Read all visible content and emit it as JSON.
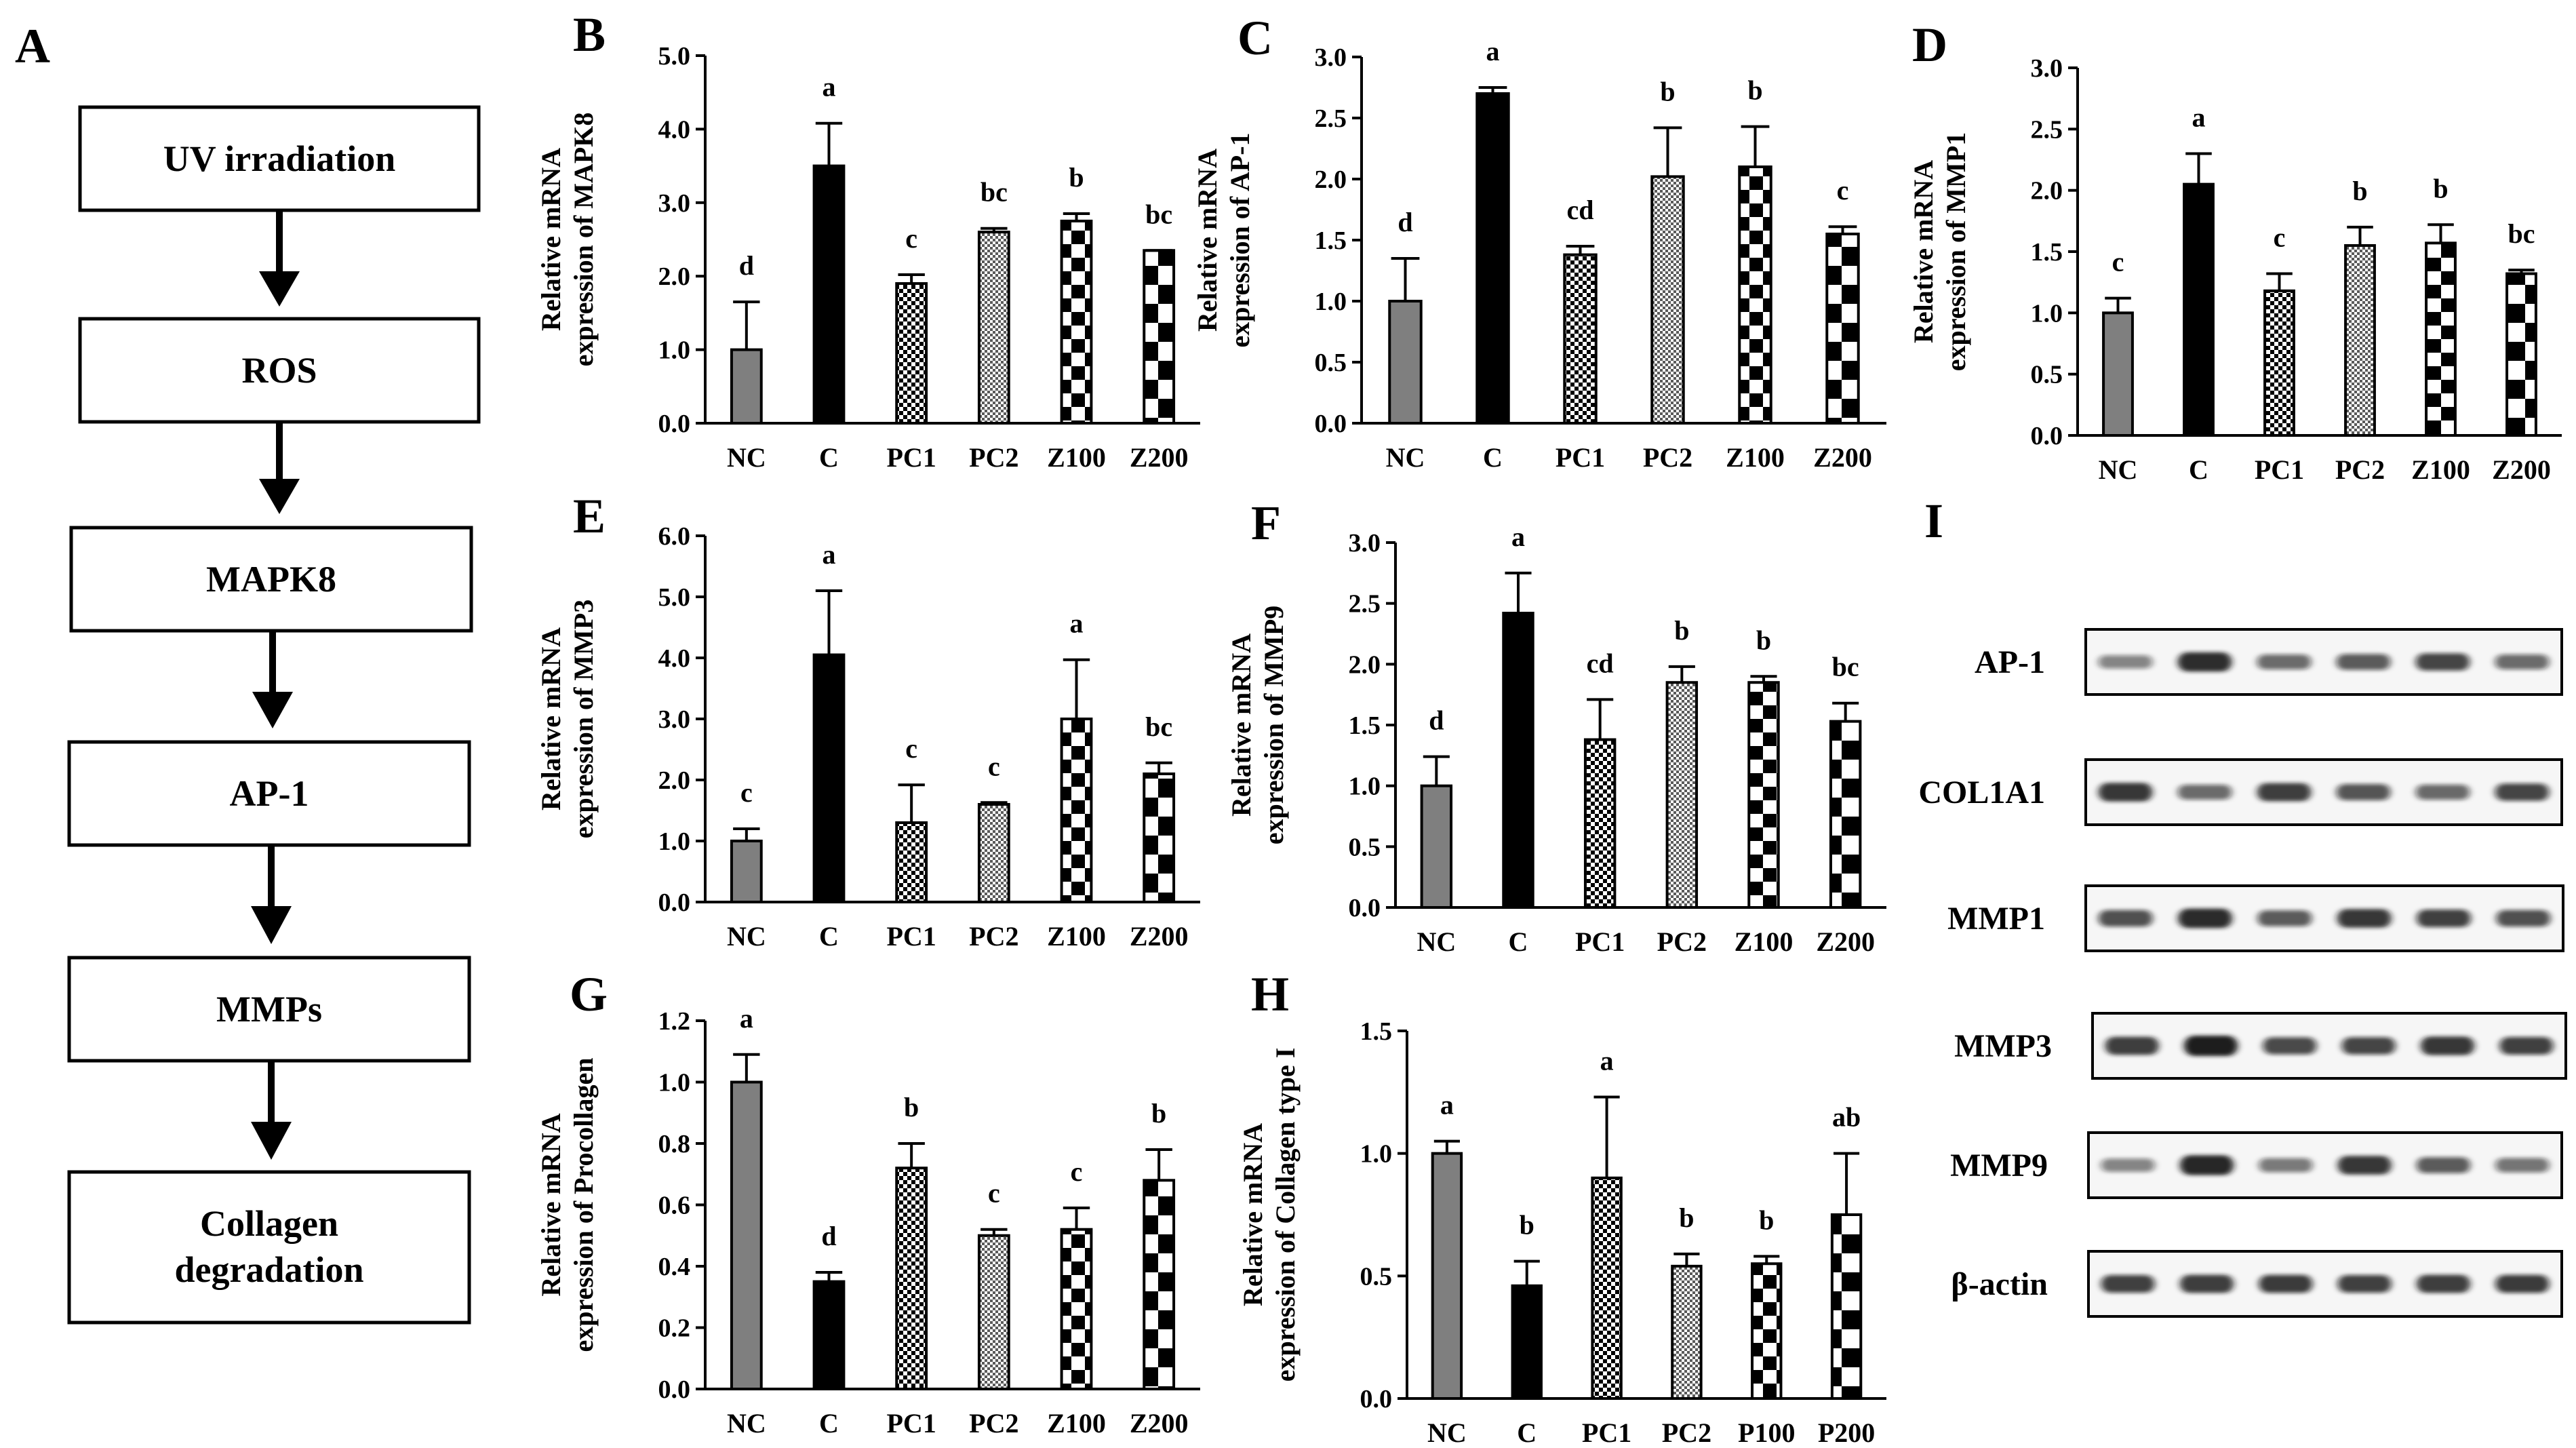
{
  "flow": {
    "letter": "A",
    "steps": [
      "UV irradiation",
      "ROS",
      "MAPK8",
      "AP-1",
      "MMPs",
      "Collagen degradation"
    ]
  },
  "colors": {
    "nc": "#7f7f7f",
    "c": "#000000",
    "line": "#000000",
    "band": "#141414",
    "panel_bg": "#ffffff",
    "blot_bg": "#f6f6f6"
  },
  "chart_data": [
    {
      "panel": "B",
      "type": "bar",
      "ylabel": "Relative mRNA expression of MAPK8",
      "categories": [
        "NC",
        "C",
        "PC1",
        "PC2",
        "Z100",
        "Z200"
      ],
      "patterns": [
        "gray",
        "black",
        "dots",
        "fine",
        "checker",
        "checker-wide"
      ],
      "values": [
        1.0,
        3.5,
        1.9,
        2.6,
        2.75,
        2.35
      ],
      "errors": [
        0.65,
        0.58,
        0.12,
        0.05,
        0.1,
        0.0
      ],
      "letters": [
        "d",
        "a",
        "c",
        "bc",
        "b",
        "bc"
      ],
      "ylim": [
        0,
        5
      ],
      "ticks": [
        "0.0",
        "1.0",
        "2.0",
        "3.0",
        "4.0",
        "5.0"
      ]
    },
    {
      "panel": "C",
      "type": "bar",
      "ylabel": "Relative mRNA expression of AP-1",
      "categories": [
        "NC",
        "C",
        "PC1",
        "PC2",
        "Z100",
        "Z200"
      ],
      "patterns": [
        "gray",
        "black",
        "dots",
        "fine",
        "checker",
        "checker-wide"
      ],
      "values": [
        1.0,
        2.7,
        1.38,
        2.02,
        2.1,
        1.55
      ],
      "errors": [
        0.35,
        0.05,
        0.07,
        0.4,
        0.33,
        0.06
      ],
      "letters": [
        "d",
        "a",
        "cd",
        "b",
        "b",
        "c"
      ],
      "ylim": [
        0,
        3
      ],
      "ticks": [
        "0.0",
        "0.5",
        "1.0",
        "1.5",
        "2.0",
        "2.5",
        "3.0"
      ]
    },
    {
      "panel": "D",
      "type": "bar",
      "ylabel": "Relative mRNA expression of MMP1",
      "categories": [
        "NC",
        "C",
        "PC1",
        "PC2",
        "Z100",
        "Z200"
      ],
      "patterns": [
        "gray",
        "black",
        "dots",
        "fine",
        "checker",
        "checker-wide"
      ],
      "values": [
        1.0,
        2.05,
        1.18,
        1.55,
        1.57,
        1.32
      ],
      "errors": [
        0.12,
        0.25,
        0.14,
        0.15,
        0.15,
        0.03
      ],
      "letters": [
        "c",
        "a",
        "c",
        "b",
        "b",
        "bc"
      ],
      "ylim": [
        0,
        3
      ],
      "ticks": [
        "0.0",
        "0.5",
        "1.0",
        "1.5",
        "2.0",
        "2.5",
        "3.0"
      ]
    },
    {
      "panel": "E",
      "type": "bar",
      "ylabel": "Relative mRNA expression of MMP3",
      "categories": [
        "NC",
        "C",
        "PC1",
        "PC2",
        "Z100",
        "Z200"
      ],
      "patterns": [
        "gray",
        "black",
        "dots",
        "fine",
        "checker",
        "checker-wide"
      ],
      "values": [
        1.0,
        4.05,
        1.3,
        1.6,
        3.0,
        2.1
      ],
      "errors": [
        0.2,
        1.05,
        0.62,
        0.03,
        0.97,
        0.18
      ],
      "letters": [
        "c",
        "a",
        "c",
        "c",
        "a",
        "bc"
      ],
      "ylim": [
        0,
        6
      ],
      "ticks": [
        "0.0",
        "1.0",
        "2.0",
        "3.0",
        "4.0",
        "5.0",
        "6.0"
      ]
    },
    {
      "panel": "F",
      "type": "bar",
      "ylabel": "Relative mRNA expression of MMP9",
      "categories": [
        "NC",
        "C",
        "PC1",
        "PC2",
        "Z100",
        "Z200"
      ],
      "patterns": [
        "gray",
        "black",
        "dots",
        "fine",
        "checker",
        "checker-wide"
      ],
      "values": [
        1.0,
        2.42,
        1.38,
        1.85,
        1.85,
        1.53
      ],
      "errors": [
        0.24,
        0.33,
        0.33,
        0.13,
        0.05,
        0.15
      ],
      "letters": [
        "d",
        "a",
        "cd",
        "b",
        "b",
        "bc"
      ],
      "ylim": [
        0,
        3
      ],
      "ticks": [
        "0.0",
        "0.5",
        "1.0",
        "1.5",
        "2.0",
        "2.5",
        "3.0"
      ]
    },
    {
      "panel": "G",
      "type": "bar",
      "ylabel": "Relative mRNA expression of Procollagen",
      "categories": [
        "NC",
        "C",
        "PC1",
        "PC2",
        "Z100",
        "Z200"
      ],
      "patterns": [
        "gray",
        "black",
        "dots",
        "fine",
        "checker",
        "checker-wide"
      ],
      "values": [
        1.0,
        0.35,
        0.72,
        0.5,
        0.52,
        0.68
      ],
      "errors": [
        0.09,
        0.03,
        0.08,
        0.02,
        0.07,
        0.1
      ],
      "letters": [
        "a",
        "d",
        "b",
        "c",
        "c",
        "b"
      ],
      "ylim": [
        0,
        1.2
      ],
      "ticks": [
        "0.0",
        "0.2",
        "0.4",
        "0.6",
        "0.8",
        "1.0",
        "1.2"
      ]
    },
    {
      "panel": "H",
      "type": "bar",
      "ylabel": "Relative mRNA expression of Collagen type I",
      "categories": [
        "NC",
        "C",
        "PC1",
        "PC2",
        "P100",
        "P200"
      ],
      "patterns": [
        "gray",
        "black",
        "dots",
        "fine",
        "checker",
        "checker-wide"
      ],
      "values": [
        1.0,
        0.46,
        0.9,
        0.54,
        0.55,
        0.75
      ],
      "errors": [
        0.05,
        0.1,
        0.33,
        0.05,
        0.03,
        0.25
      ],
      "letters": [
        "a",
        "b",
        "a",
        "b",
        "b",
        "ab"
      ],
      "ylim": [
        0,
        1.5
      ],
      "ticks": [
        "0.0",
        "0.5",
        "1.0",
        "1.5"
      ]
    }
  ],
  "western": {
    "panel": "I",
    "proteins": [
      "AP-1",
      "COL1A1",
      "MMP1",
      "MMP3",
      "MMP9",
      "β-actin"
    ],
    "intensities": [
      [
        0.35,
        0.9,
        0.5,
        0.6,
        0.72,
        0.5
      ],
      [
        0.85,
        0.5,
        0.8,
        0.62,
        0.52,
        0.72
      ],
      [
        0.65,
        0.92,
        0.6,
        0.85,
        0.75,
        0.65
      ],
      [
        0.8,
        1.0,
        0.7,
        0.72,
        0.85,
        0.75
      ],
      [
        0.35,
        0.95,
        0.42,
        0.85,
        0.6,
        0.45
      ],
      [
        0.75,
        0.8,
        0.78,
        0.75,
        0.8,
        0.78
      ]
    ]
  }
}
